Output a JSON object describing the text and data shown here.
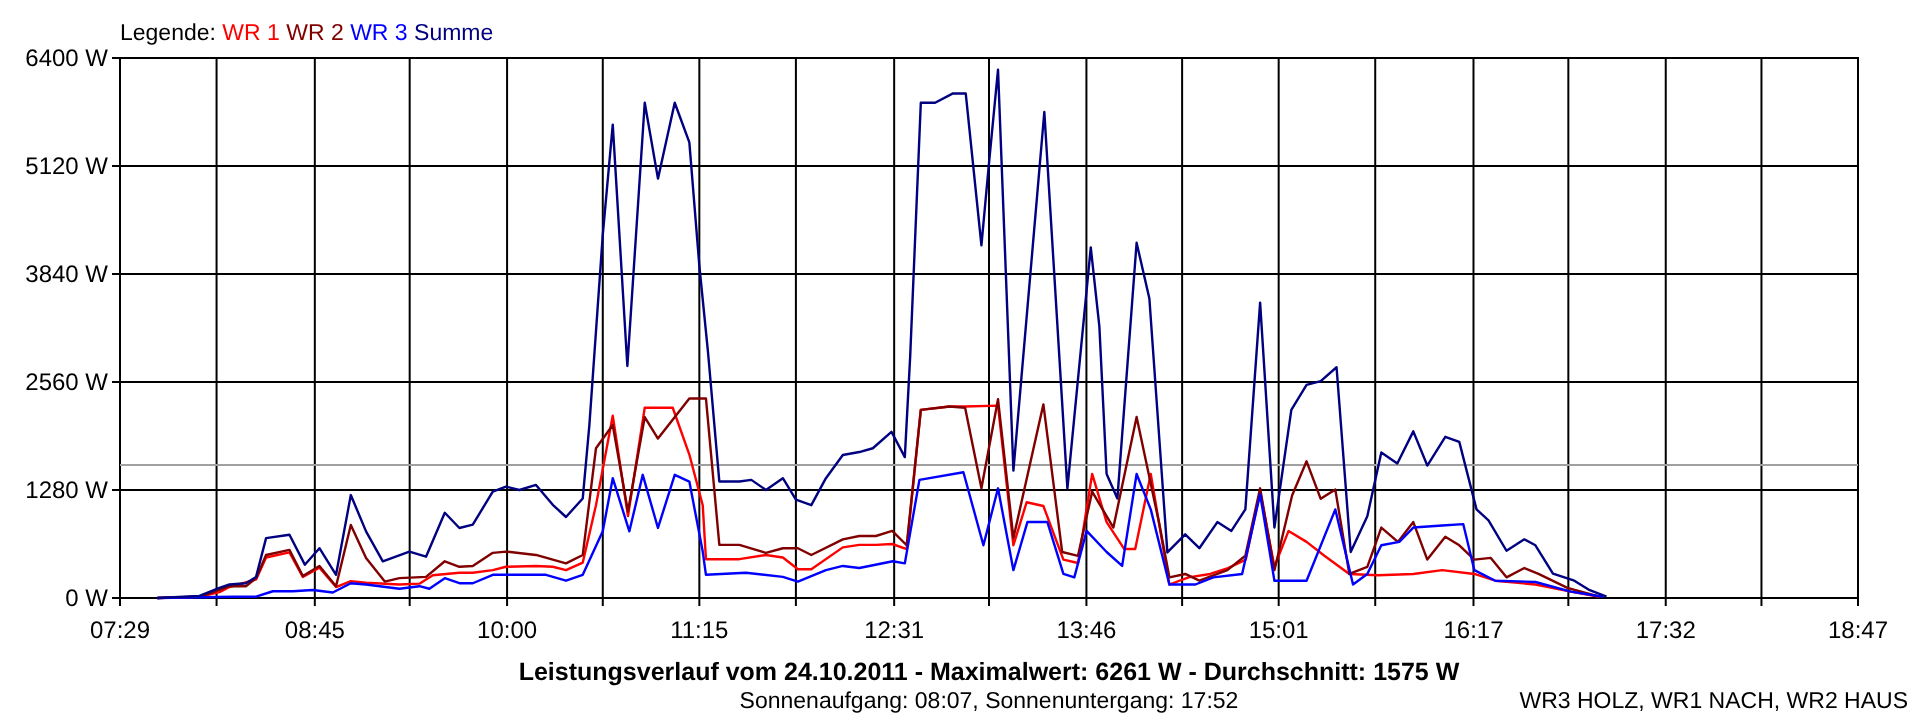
{
  "chart_data": {
    "type": "line",
    "title": "Leistungsverlauf vom 24.10.2011 - Maximalwert: 6261 W - Durchschnitt: 1575 W",
    "subtitle": "Sonnenaufgang: 08:07, Sonnenuntergang: 17:52",
    "legend_title": "Legende:",
    "annotations": [
      "WR3 HOLZ, WR1 NACH, WR2 HAUS"
    ],
    "legend": "top left",
    "grid": true,
    "marker": "none",
    "line_style": "solid",
    "xlim": [
      7.4833,
      18.7833
    ],
    "ylim": [
      0,
      6400
    ],
    "xticks": [
      {
        "value": 7.4833,
        "label": "07:29"
      },
      {
        "value": 8.1111,
        "label": null
      },
      {
        "value": 8.75,
        "label": "08:45"
      },
      {
        "value": 9.3667,
        "label": null
      },
      {
        "value": 10,
        "label": "10:00"
      },
      {
        "value": 10.6222,
        "label": null
      },
      {
        "value": 11.25,
        "label": "11:15"
      },
      {
        "value": 11.8778,
        "label": null
      },
      {
        "value": 12.5167,
        "label": "12:31"
      },
      {
        "value": 13.1333,
        "label": null
      },
      {
        "value": 13.7667,
        "label": "13:46"
      },
      {
        "value": 14.3889,
        "label": null
      },
      {
        "value": 15.0167,
        "label": "15:01"
      },
      {
        "value": 15.6444,
        "label": null
      },
      {
        "value": 16.2833,
        "label": "16:17"
      },
      {
        "value": 16.9,
        "label": null
      },
      {
        "value": 17.5333,
        "label": "17:32"
      },
      {
        "value": 18.1556,
        "label": null
      },
      {
        "value": 18.7833,
        "label": "18:47"
      }
    ],
    "yticks": [
      {
        "value": 0,
        "label": "0 W"
      },
      {
        "value": 1280,
        "label": "1280 W"
      },
      {
        "value": 2560,
        "label": "2560 W"
      },
      {
        "value": 3840,
        "label": "3840 W"
      },
      {
        "value": 5120,
        "label": "5120 W"
      },
      {
        "value": 6400,
        "label": "6400 W"
      }
    ],
    "ref_lines": [
      {
        "axis": "y",
        "value": 1575,
        "color": "#a0a0a0"
      }
    ],
    "series": [
      {
        "name": "WR 1",
        "color": "#ff0000",
        "x": [
          7.726,
          8.0,
          8.13,
          8.195,
          8.368,
          8.433,
          8.585,
          8.672,
          8.78,
          8.888,
          8.984,
          9.083,
          9.3,
          9.43,
          9.517,
          9.69,
          9.777,
          9.907,
          9.993,
          10.188,
          10.297,
          10.383,
          10.492,
          10.578,
          10.687,
          10.786,
          10.895,
          11.077,
          11.185,
          11.272,
          11.293,
          11.51,
          11.683,
          11.793,
          11.891,
          11.978,
          12.183,
          12.29,
          12.398,
          12.504,
          12.598,
          12.69,
          12.876,
          12.978,
          13.192,
          13.292,
          13.378,
          13.487,
          13.617,
          13.712,
          13.804,
          13.898,
          14.013,
          14.084,
          14.185,
          14.306,
          14.431,
          14.571,
          14.687,
          14.803,
          14.896,
          14.989,
          15.081,
          15.198,
          15.314,
          15.476,
          15.662,
          15.892,
          16.08,
          16.289,
          16.425,
          16.686,
          16.916,
          17.102
        ],
        "values": [
          0,
          15,
          70,
          130,
          220,
          480,
          540,
          250,
          360,
          130,
          200,
          180,
          160,
          170,
          270,
          300,
          300,
          330,
          370,
          380,
          370,
          330,
          420,
          1100,
          2160,
          970,
          2255,
          2255,
          1700,
          1100,
          460,
          460,
          510,
          480,
          340,
          340,
          600,
          630,
          630,
          640,
          580,
          2230,
          2270,
          2270,
          2280,
          625,
          1135,
          1090,
          455,
          415,
          1470,
          900,
          580,
          580,
          1470,
          160,
          245,
          285,
          355,
          455,
          1260,
          370,
          795,
          665,
          500,
          285,
          270,
          285,
          330,
          285,
          205,
          160,
          75,
          15
        ]
      },
      {
        "name": "WR 2",
        "color": "#800000",
        "x": [
          7.726,
          8.0,
          8.107,
          8.195,
          8.302,
          8.368,
          8.433,
          8.585,
          8.672,
          8.78,
          8.888,
          8.984,
          9.083,
          9.205,
          9.3,
          9.473,
          9.595,
          9.69,
          9.777,
          9.907,
          9.993,
          10.188,
          10.383,
          10.492,
          10.578,
          10.687,
          10.786,
          10.895,
          10.981,
          11.185,
          11.293,
          11.38,
          11.51,
          11.683,
          11.793,
          11.891,
          11.978,
          12.183,
          12.29,
          12.398,
          12.504,
          12.598,
          12.69,
          12.876,
          12.978,
          13.084,
          13.192,
          13.292,
          13.487,
          13.609,
          13.712,
          13.804,
          13.942,
          14.093,
          14.241,
          14.306,
          14.409,
          14.501,
          14.683,
          14.8,
          14.896,
          14.989,
          15.104,
          15.198,
          15.29,
          15.385,
          15.476,
          15.593,
          15.684,
          15.792,
          15.892,
          15.983,
          16.1,
          16.191,
          16.289,
          16.396,
          16.498,
          16.614,
          16.706,
          16.894,
          17.102
        ],
        "values": [
          0,
          15,
          80,
          140,
          140,
          235,
          510,
          570,
          260,
          380,
          140,
          865,
          475,
          195,
          235,
          250,
          435,
          370,
          380,
          535,
          550,
          510,
          410,
          510,
          1775,
          2050,
          1025,
          2145,
          1890,
          2365,
          2365,
          630,
          630,
          535,
          590,
          590,
          510,
          695,
          735,
          735,
          795,
          625,
          2230,
          2270,
          2255,
          1300,
          2355,
          710,
          2295,
          545,
          500,
          1260,
          835,
          2145,
          875,
          245,
          285,
          205,
          330,
          500,
          1300,
          330,
          1215,
          1620,
          1175,
          1285,
          285,
          370,
          835,
          665,
          900,
          455,
          725,
          625,
          455,
          475,
          245,
          355,
          285,
          120,
          15
        ]
      },
      {
        "name": "WR 3",
        "color": "#0000ff",
        "x": [
          7.726,
          8.217,
          8.368,
          8.477,
          8.607,
          8.737,
          8.867,
          8.984,
          9.083,
          9.3,
          9.43,
          9.495,
          9.595,
          9.69,
          9.777,
          9.907,
          10.08,
          10.253,
          10.383,
          10.492,
          10.622,
          10.687,
          10.795,
          10.882,
          10.981,
          11.09,
          11.185,
          11.272,
          11.293,
          11.553,
          11.793,
          11.891,
          12.073,
          12.183,
          12.29,
          12.508,
          12.586,
          12.681,
          12.967,
          13.097,
          13.192,
          13.292,
          13.383,
          13.513,
          13.617,
          13.688,
          13.768,
          13.898,
          13.999,
          14.093,
          14.185,
          14.306,
          14.475,
          14.592,
          14.779,
          14.896,
          14.989,
          15.198,
          15.385,
          15.5,
          15.593,
          15.684,
          15.801,
          15.892,
          16.08,
          16.217,
          16.289,
          16.425,
          16.686,
          16.916,
          17.125
        ],
        "values": [
          0,
          15,
          15,
          80,
          80,
          95,
          65,
          175,
          160,
          110,
          140,
          110,
          235,
          175,
          175,
          275,
          275,
          275,
          205,
          275,
          790,
          1420,
          790,
          1460,
          830,
          1460,
          1380,
          550,
          275,
          300,
          250,
          195,
          330,
          380,
          355,
          435,
          410,
          1400,
          1490,
          625,
          1300,
          330,
          900,
          900,
          285,
          245,
          795,
          545,
          380,
          1470,
          1050,
          160,
          160,
          245,
          285,
          1230,
          205,
          205,
          1050,
          160,
          285,
          625,
          665,
          835,
          860,
          875,
          330,
          205,
          190,
          75,
          15
        ]
      },
      {
        "name": "Summe",
        "color": "#000080",
        "x": [
          7.726,
          8.0,
          8.13,
          8.195,
          8.302,
          8.368,
          8.433,
          8.585,
          8.685,
          8.78,
          8.888,
          8.984,
          9.083,
          9.192,
          9.365,
          9.473,
          9.595,
          9.69,
          9.777,
          9.907,
          9.993,
          10.08,
          10.188,
          10.297,
          10.383,
          10.492,
          10.535,
          10.622,
          10.687,
          10.782,
          10.895,
          10.981,
          11.09,
          11.185,
          11.25,
          11.306,
          11.38,
          11.51,
          11.588,
          11.683,
          11.793,
          11.878,
          11.978,
          12.073,
          12.183,
          12.29,
          12.378,
          12.499,
          12.586,
          12.621,
          12.69,
          12.783,
          12.899,
          12.982,
          13.084,
          13.131,
          13.192,
          13.292,
          13.493,
          13.643,
          13.795,
          13.851,
          13.898,
          13.968,
          14.093,
          14.176,
          14.293,
          14.409,
          14.501,
          14.618,
          14.709,
          14.8,
          14.896,
          14.989,
          15.099,
          15.198,
          15.29,
          15.393,
          15.485,
          15.593,
          15.684,
          15.788,
          15.892,
          15.983,
          16.1,
          16.191,
          16.303,
          16.381,
          16.498,
          16.614,
          16.686,
          16.8,
          16.939,
          17.031,
          17.148
        ],
        "values": [
          0,
          25,
          120,
          160,
          175,
          250,
          710,
          750,
          395,
          590,
          275,
          1220,
          790,
          435,
          550,
          490,
          1010,
          830,
          870,
          1260,
          1320,
          1280,
          1340,
          1105,
          960,
          1180,
          2050,
          4300,
          5610,
          2750,
          5870,
          4970,
          5870,
          5400,
          3940,
          2920,
          1380,
          1380,
          1400,
          1280,
          1420,
          1165,
          1100,
          1420,
          1695,
          1730,
          1775,
          1970,
          1670,
          2870,
          5870,
          5870,
          5980,
          5980,
          4180,
          5110,
          6261,
          1510,
          5760,
          1300,
          4155,
          3215,
          1470,
          1180,
          4210,
          3550,
          540,
          755,
          590,
          900,
          795,
          1050,
          3500,
          835,
          2230,
          2525,
          2570,
          2735,
          545,
          970,
          1725,
          1595,
          1975,
          1570,
          1910,
          1850,
          1050,
          920,
          560,
          695,
          625,
          290,
          205,
          100,
          15
        ]
      }
    ]
  }
}
